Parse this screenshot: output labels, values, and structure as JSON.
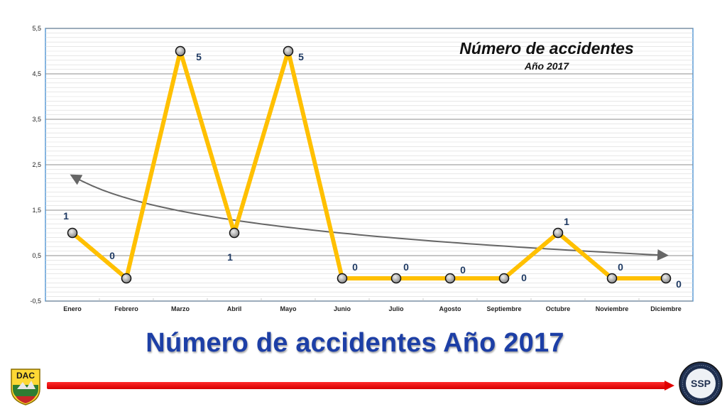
{
  "slide": {
    "title": "Número de accidentes Año 2017"
  },
  "logos": {
    "left_text": "DAC",
    "right_text": "SSP",
    "right_ring_text": "PROGRAMA DE SEGURIDAD OPERACIONAL"
  },
  "chart_data": {
    "type": "line",
    "title": "Número de accidentes",
    "subtitle": "Año 2017",
    "categories": [
      "Enero",
      "Febrero",
      "Marzo",
      "Abril",
      "Mayo",
      "Junio",
      "Julio",
      "Agosto",
      "Septiembre",
      "Octubre",
      "Noviembre",
      "Diciembre"
    ],
    "series": [
      {
        "values": [
          1,
          0,
          5,
          1,
          5,
          0,
          0,
          0,
          0,
          1,
          0,
          0
        ]
      }
    ],
    "data_labels": [
      "1",
      "0",
      "5",
      "1",
      "5",
      "0",
      "0",
      "0",
      "0",
      "1",
      "0",
      "0"
    ],
    "y_ticks": [
      "-0,5",
      "0,5",
      "1,5",
      "2,5",
      "3,5",
      "4,5",
      "5,5"
    ],
    "ylim": [
      -0.5,
      5.5
    ],
    "trendline": {
      "type": "logarithmic",
      "color": "#666666"
    },
    "line_color": "#ffc000",
    "grid": true,
    "legend": "none"
  }
}
